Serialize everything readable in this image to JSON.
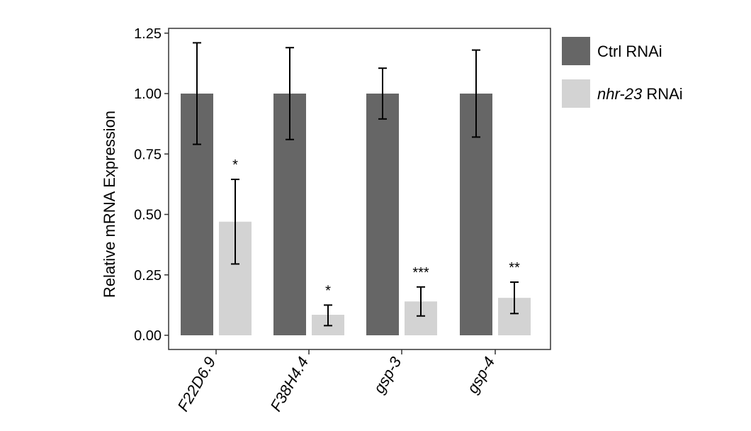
{
  "chart_data": {
    "type": "bar",
    "title": "",
    "xlabel": "",
    "ylabel": "Relative mRNA Expression",
    "ylim": [
      0,
      1.25
    ],
    "yticks": [
      "0.00",
      "0.25",
      "0.50",
      "0.75",
      "1.00",
      "1.25"
    ],
    "ytick_values": [
      0,
      0.25,
      0.5,
      0.75,
      1.0,
      1.25
    ],
    "categories": [
      "F22D6.9",
      "F38H4.4",
      "gsp-3",
      "gsp-4"
    ],
    "grid": false,
    "legend_position": "right",
    "series": [
      {
        "name": "Ctrl RNAi",
        "color": "#666666",
        "values": [
          1.0,
          1.0,
          1.0,
          1.0
        ],
        "error_low": [
          0.79,
          0.81,
          0.895,
          0.82
        ],
        "error_high": [
          1.21,
          1.19,
          1.105,
          1.18
        ],
        "significance": [
          "",
          "",
          "",
          ""
        ]
      },
      {
        "name": "nhr-23 RNAi",
        "legend_italic_part": "nhr-23",
        "legend_plain_part": " RNAi",
        "color": "#d3d3d3",
        "values": [
          0.47,
          0.085,
          0.14,
          0.155
        ],
        "error_low": [
          0.295,
          0.04,
          0.08,
          0.09
        ],
        "error_high": [
          0.645,
          0.125,
          0.2,
          0.22
        ],
        "significance": [
          "*",
          "*",
          "***",
          "**"
        ]
      }
    ]
  }
}
